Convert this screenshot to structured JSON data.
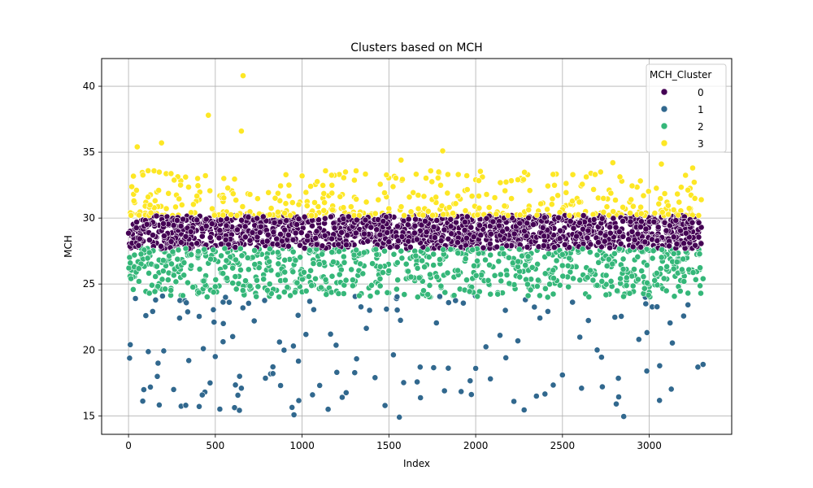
{
  "chart_data": {
    "type": "scatter",
    "title": "Clusters based on MCH",
    "xlabel": "Index",
    "ylabel": "MCH",
    "xlim": [
      -155,
      3475
    ],
    "ylim": [
      13.6,
      42.1
    ],
    "x_ticks": [
      0,
      500,
      1000,
      1500,
      2000,
      2500,
      3000
    ],
    "y_ticks": [
      15,
      20,
      25,
      30,
      35,
      40
    ],
    "grid": true,
    "x_count": 3300,
    "legend": {
      "title": "MCH_Cluster",
      "placement": "top-right"
    },
    "series": [
      {
        "name": "0",
        "color": "#440154",
        "y_range": [
          27.7,
          30.2
        ],
        "points": [
          [
            20,
            28.1
          ],
          [
            150,
            29.4
          ],
          [
            330,
            28.6
          ],
          [
            520,
            29.8
          ],
          [
            700,
            28.3
          ],
          [
            900,
            29.1
          ],
          [
            1100,
            28.8
          ],
          [
            1300,
            29.6
          ],
          [
            1500,
            28.2
          ],
          [
            1700,
            29.2
          ],
          [
            1900,
            28.5
          ],
          [
            2100,
            29.7
          ],
          [
            2300,
            28.4
          ],
          [
            2500,
            29.0
          ],
          [
            2700,
            28.7
          ],
          [
            2900,
            29.5
          ],
          [
            3100,
            28.9
          ],
          [
            3300,
            29.3
          ]
        ]
      },
      {
        "name": "1",
        "color": "#31688e",
        "y_range": [
          14.9,
          24.1
        ],
        "points": [
          [
            10,
            20.4
          ],
          [
            40,
            23.9
          ],
          [
            100,
            22.6
          ],
          [
            170,
            19.0
          ],
          [
            260,
            17.0
          ],
          [
            330,
            15.8
          ],
          [
            440,
            16.8
          ],
          [
            470,
            17.5
          ],
          [
            500,
            19.5
          ],
          [
            640,
            18.0
          ],
          [
            650,
            17.1
          ],
          [
            870,
            20.6
          ],
          [
            950,
            20.3
          ],
          [
            1060,
            16.6
          ],
          [
            1150,
            15.5
          ],
          [
            1200,
            18.3
          ],
          [
            1420,
            17.9
          ],
          [
            1560,
            14.9
          ],
          [
            1680,
            18.7
          ],
          [
            1820,
            16.9
          ],
          [
            2000,
            18.6
          ],
          [
            2220,
            16.1
          ],
          [
            2350,
            16.5
          ],
          [
            2500,
            18.1
          ],
          [
            2700,
            20.0
          ],
          [
            2730,
            17.2
          ],
          [
            2810,
            15.9
          ],
          [
            2980,
            23.5
          ],
          [
            3060,
            18.8
          ],
          [
            3280,
            18.7
          ],
          [
            3310,
            18.9
          ]
        ]
      },
      {
        "name": "2",
        "color": "#35b779",
        "y_range": [
          24.0,
          27.7
        ],
        "points": [
          [
            10,
            26.6
          ],
          [
            60,
            25.2
          ],
          [
            120,
            24.3
          ],
          [
            200,
            26.8
          ],
          [
            300,
            25.5
          ],
          [
            400,
            27.0
          ],
          [
            500,
            24.8
          ],
          [
            600,
            26.2
          ],
          [
            700,
            24.6
          ],
          [
            800,
            27.3
          ],
          [
            900,
            25.9
          ],
          [
            1000,
            24.4
          ],
          [
            1100,
            26.5
          ],
          [
            1200,
            25.1
          ],
          [
            1300,
            27.2
          ],
          [
            1400,
            24.9
          ],
          [
            1500,
            26.0
          ],
          [
            1600,
            25.4
          ],
          [
            1700,
            24.5
          ],
          [
            1800,
            26.9
          ],
          [
            1900,
            25.7
          ],
          [
            2000,
            24.2
          ],
          [
            2100,
            26.3
          ],
          [
            2200,
            25.0
          ],
          [
            2300,
            27.1
          ],
          [
            2400,
            24.7
          ],
          [
            2500,
            26.4
          ],
          [
            2600,
            25.3
          ],
          [
            2700,
            24.9
          ],
          [
            2800,
            26.7
          ],
          [
            2900,
            25.6
          ],
          [
            3000,
            24.8
          ],
          [
            3100,
            26.1
          ],
          [
            3200,
            25.2
          ],
          [
            3310,
            25.4
          ]
        ]
      },
      {
        "name": "3",
        "color": "#fde725",
        "y_range": [
          30.2,
          40.8
        ],
        "points": [
          [
            50,
            35.4
          ],
          [
            190,
            35.7
          ],
          [
            460,
            37.8
          ],
          [
            660,
            40.8
          ],
          [
            650,
            36.6
          ],
          [
            1570,
            34.4
          ],
          [
            1810,
            35.1
          ],
          [
            2790,
            34.2
          ],
          [
            3070,
            34.1
          ],
          [
            3250,
            33.8
          ],
          [
            100,
            31.2
          ],
          [
            300,
            32.5
          ],
          [
            700,
            31.8
          ],
          [
            1000,
            33.2
          ],
          [
            1250,
            33.5
          ],
          [
            2000,
            32.9
          ],
          [
            2300,
            33.3
          ],
          [
            2560,
            33.3
          ],
          [
            2720,
            33.5
          ],
          [
            3300,
            31.4
          ]
        ]
      }
    ]
  }
}
